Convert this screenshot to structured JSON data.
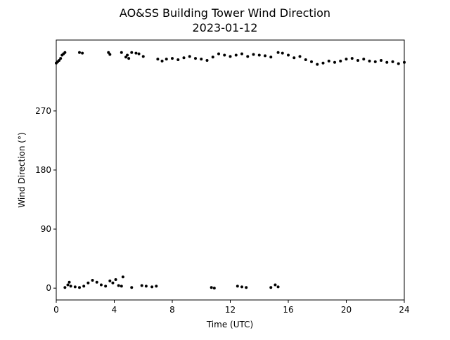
{
  "chart_data": {
    "type": "scatter",
    "title": "AO&SS Building Tower Wind Direction",
    "subtitle": "2023-01-12",
    "x_label": "Time (UTC)",
    "y_label": "Wind Direction (°)",
    "color": "#000000",
    "xlim": [
      0,
      24
    ],
    "xticks": [
      0,
      4,
      8,
      12,
      16,
      20,
      24
    ],
    "ylim": [
      -18,
      378
    ],
    "yticks": [
      0,
      90,
      180,
      270
    ],
    "x": [
      0.0,
      0.1,
      0.2,
      0.3,
      0.4,
      0.5,
      0.6,
      1.6,
      1.8,
      3.6,
      3.7,
      4.5,
      4.8,
      4.9,
      5.0,
      5.2,
      5.5,
      5.7,
      6.0,
      7.0,
      7.3,
      7.6,
      8.0,
      8.4,
      8.8,
      9.2,
      9.6,
      10.0,
      10.4,
      10.8,
      11.2,
      11.6,
      12.0,
      12.4,
      12.8,
      13.2,
      13.6,
      14.0,
      14.4,
      14.8,
      15.3,
      15.6,
      16.0,
      16.4,
      16.8,
      17.2,
      17.6,
      18.0,
      18.4,
      18.8,
      19.2,
      19.6,
      20.0,
      20.4,
      20.8,
      21.2,
      21.6,
      22.0,
      22.4,
      22.8,
      23.2,
      23.6,
      24.0,
      0.6,
      0.8,
      0.9,
      1.0,
      1.3,
      1.6,
      1.9,
      2.2,
      2.5,
      2.8,
      3.1,
      3.4,
      3.7,
      3.9,
      4.1,
      4.3,
      4.5,
      4.6,
      5.2,
      5.9,
      6.2,
      6.6,
      6.9,
      10.7,
      10.9,
      12.5,
      12.8,
      13.1,
      14.8,
      15.1,
      15.3
    ],
    "values": [
      343,
      345,
      347,
      350,
      355,
      357,
      359,
      359,
      358,
      359,
      356,
      359,
      352,
      355,
      350,
      359,
      358,
      357,
      353,
      349,
      346,
      349,
      350,
      348,
      351,
      353,
      350,
      349,
      347,
      352,
      357,
      355,
      353,
      355,
      357,
      353,
      356,
      355,
      354,
      352,
      359,
      358,
      355,
      351,
      353,
      348,
      345,
      341,
      343,
      346,
      344,
      346,
      349,
      350,
      347,
      349,
      346,
      345,
      347,
      344,
      345,
      342,
      344,
      1,
      5,
      9,
      3,
      2,
      1,
      3,
      8,
      12,
      9,
      5,
      3,
      11,
      8,
      13,
      4,
      3,
      17,
      1,
      4,
      3,
      2,
      3,
      1,
      0,
      3,
      2,
      1,
      1,
      5,
      2
    ]
  }
}
